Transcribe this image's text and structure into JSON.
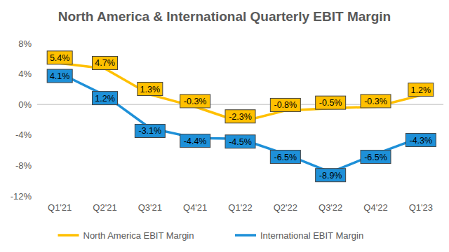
{
  "chart_data": {
    "type": "line",
    "title": "North America & International Quarterly EBIT Margin",
    "categories": [
      "Q1'21",
      "Q2'21",
      "Q3'21",
      "Q4'21",
      "Q1'22",
      "Q2'22",
      "Q3'22",
      "Q4'22",
      "Q1'23"
    ],
    "series": [
      {
        "name": "North America EBIT Margin",
        "color": "#ffc000",
        "values": [
          5.4,
          4.7,
          1.3,
          -0.3,
          -2.3,
          -0.8,
          -0.5,
          -0.3,
          1.2
        ],
        "value_labels": [
          "5.4%",
          "4.7%",
          "1.3%",
          "-0.3%",
          "-2.3%",
          "-0.8%",
          "-0.5%",
          "-0.3%",
          "1.2%"
        ]
      },
      {
        "name": "International EBIT Margin",
        "color": "#1e90d8",
        "values": [
          4.1,
          1.2,
          -3.1,
          -4.4,
          -4.5,
          -6.5,
          -8.9,
          -6.5,
          -4.3
        ],
        "value_labels": [
          "4.1%",
          "1.2%",
          "-3.1%",
          "-4.4%",
          "-4.5%",
          "-6.5%",
          "-8.9%",
          "-6.5%",
          "-4.3%"
        ]
      }
    ],
    "ylim": [
      -12,
      8
    ],
    "yticks": [
      {
        "value": -12,
        "label": "-12%"
      },
      {
        "value": -8,
        "label": "-8%"
      },
      {
        "value": -4,
        "label": "-4%"
      },
      {
        "value": 0,
        "label": "0%"
      },
      {
        "value": 4,
        "label": "4%"
      },
      {
        "value": 8,
        "label": "8%"
      }
    ],
    "grid": false,
    "legend": "bottom",
    "data_labels": true
  }
}
